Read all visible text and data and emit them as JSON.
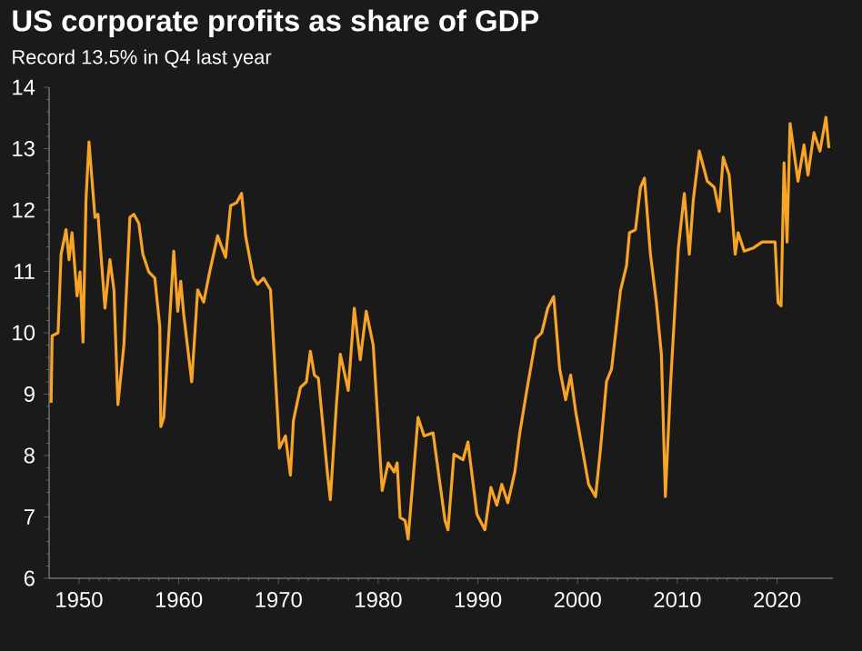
{
  "chart_data": {
    "type": "line",
    "title": "US corporate profits as share of GDP",
    "subtitle": "Record 13.5% in Q4 last year",
    "x": [
      1947.2,
      1947.3,
      1947.9,
      1948.2,
      1948.7,
      1949.0,
      1949.3,
      1949.8,
      1950.1,
      1950.4,
      1950.7,
      1951.0,
      1951.6,
      1951.9,
      1952.6,
      1953.1,
      1953.5,
      1953.9,
      1954.5,
      1955.1,
      1955.5,
      1956.0,
      1956.4,
      1957.0,
      1957.6,
      1958.1,
      1958.2,
      1958.5,
      1959.5,
      1959.9,
      1960.2,
      1960.5,
      1961.3,
      1961.9,
      1962.5,
      1963.1,
      1963.9,
      1964.7,
      1965.2,
      1965.8,
      1966.3,
      1966.7,
      1967.5,
      1967.9,
      1968.5,
      1969.2,
      1970.1,
      1970.7,
      1971.2,
      1971.5,
      1972.2,
      1972.8,
      1973.2,
      1973.6,
      1974.0,
      1974.9,
      1975.2,
      1975.8,
      1976.2,
      1977.0,
      1977.6,
      1978.2,
      1978.8,
      1979.5,
      1980.4,
      1981.0,
      1981.6,
      1981.9,
      1982.2,
      1982.7,
      1983.0,
      1984.0,
      1984.6,
      1985.5,
      1986.7,
      1987.0,
      1987.6,
      1988.5,
      1989.0,
      1989.9,
      1990.7,
      1991.3,
      1991.9,
      1992.4,
      1993.0,
      1993.7,
      1994.2,
      1994.9,
      1995.8,
      1996.4,
      1997.0,
      1997.6,
      1998.2,
      1998.8,
      1999.3,
      1999.8,
      2001.1,
      2001.8,
      2002.3,
      2002.9,
      2003.4,
      2004.3,
      2004.9,
      2005.2,
      2005.8,
      2006.3,
      2006.7,
      2007.3,
      2007.9,
      2008.4,
      2008.8,
      2009.3,
      2010.1,
      2010.7,
      2011.2,
      2011.6,
      2012.2,
      2013.0,
      2013.7,
      2014.2,
      2014.6,
      2015.2,
      2015.8,
      2016.1,
      2016.7,
      2017.6,
      2018.5,
      2019.8,
      2020.1,
      2020.4,
      2020.7,
      2021.0,
      2021.3,
      2022.1,
      2022.7,
      2023.1,
      2023.7,
      2024.3,
      2024.9,
      2025.2
    ],
    "values": [
      8.86,
      9.95,
      10.0,
      11.28,
      11.68,
      11.19,
      11.63,
      10.6,
      10.99,
      9.85,
      12.17,
      13.11,
      11.88,
      11.93,
      10.4,
      11.19,
      10.7,
      8.83,
      9.8,
      11.88,
      11.93,
      11.78,
      11.28,
      10.99,
      10.89,
      10.1,
      8.47,
      8.62,
      11.33,
      10.35,
      10.84,
      10.3,
      9.2,
      10.7,
      10.5,
      10.99,
      11.58,
      11.23,
      12.07,
      12.12,
      12.27,
      11.58,
      10.89,
      10.79,
      10.89,
      10.7,
      8.12,
      8.32,
      7.68,
      8.57,
      9.11,
      9.2,
      9.7,
      9.31,
      9.26,
      7.73,
      7.28,
      8.81,
      9.65,
      9.06,
      10.4,
      9.56,
      10.35,
      9.8,
      7.43,
      7.88,
      7.73,
      7.88,
      6.99,
      6.94,
      6.64,
      8.62,
      8.32,
      8.37,
      6.94,
      6.79,
      8.02,
      7.93,
      8.22,
      7.04,
      6.79,
      7.48,
      7.19,
      7.53,
      7.23,
      7.73,
      8.37,
      9.06,
      9.9,
      10.0,
      10.4,
      10.59,
      9.41,
      8.91,
      9.31,
      8.72,
      7.53,
      7.33,
      8.12,
      9.21,
      9.41,
      10.69,
      11.09,
      11.63,
      11.68,
      12.37,
      12.52,
      11.28,
      10.49,
      9.65,
      7.33,
      9.11,
      11.38,
      12.27,
      11.28,
      12.17,
      12.96,
      12.47,
      12.37,
      11.98,
      12.86,
      12.57,
      11.28,
      11.63,
      11.33,
      11.38,
      11.48,
      11.48,
      10.49,
      10.44,
      12.77,
      11.48,
      13.41,
      12.47,
      13.06,
      12.57,
      13.26,
      12.96,
      13.51,
      13.01
    ],
    "color": "#f7a427",
    "xlim": [
      1947,
      2025.6
    ],
    "ylim": [
      6,
      14
    ],
    "xticks": [
      1950,
      1960,
      1970,
      1980,
      1990,
      2000,
      2010,
      2020
    ],
    "yticks": [
      6,
      7,
      8,
      9,
      10,
      11,
      12,
      13,
      14
    ],
    "grid": false
  }
}
